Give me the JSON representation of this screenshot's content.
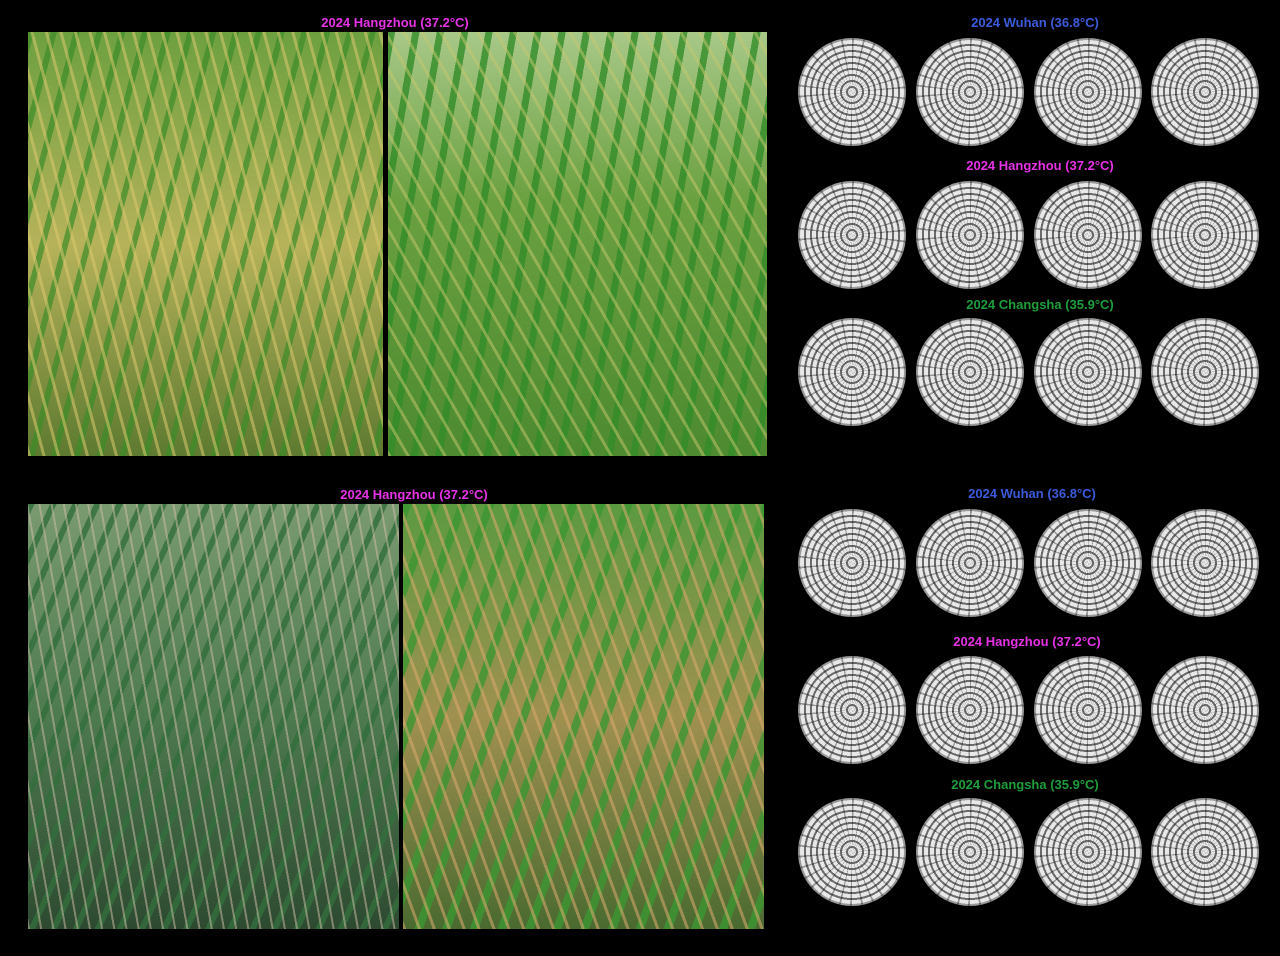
{
  "top": {
    "photo_label": "2024 Hangzhou (37.2°C)",
    "grain_labels": [
      "2024 Wuhan (36.8°C)",
      "2024 Hangzhou (37.2°C)",
      "2024 Changsha (35.9°C)"
    ]
  },
  "bottom": {
    "photo_label": "2024 Hangzhou (37.2°C)",
    "grain_labels": [
      "2024 Wuhan (36.8°C)",
      "2024 Hangzhou (37.2°C)",
      "2024 Changsha (35.9°C)"
    ]
  },
  "colors": {
    "Wuhan": "#3b5bdb",
    "Hangzhou": "#e633e6",
    "Changsha": "#1e9e3a"
  }
}
